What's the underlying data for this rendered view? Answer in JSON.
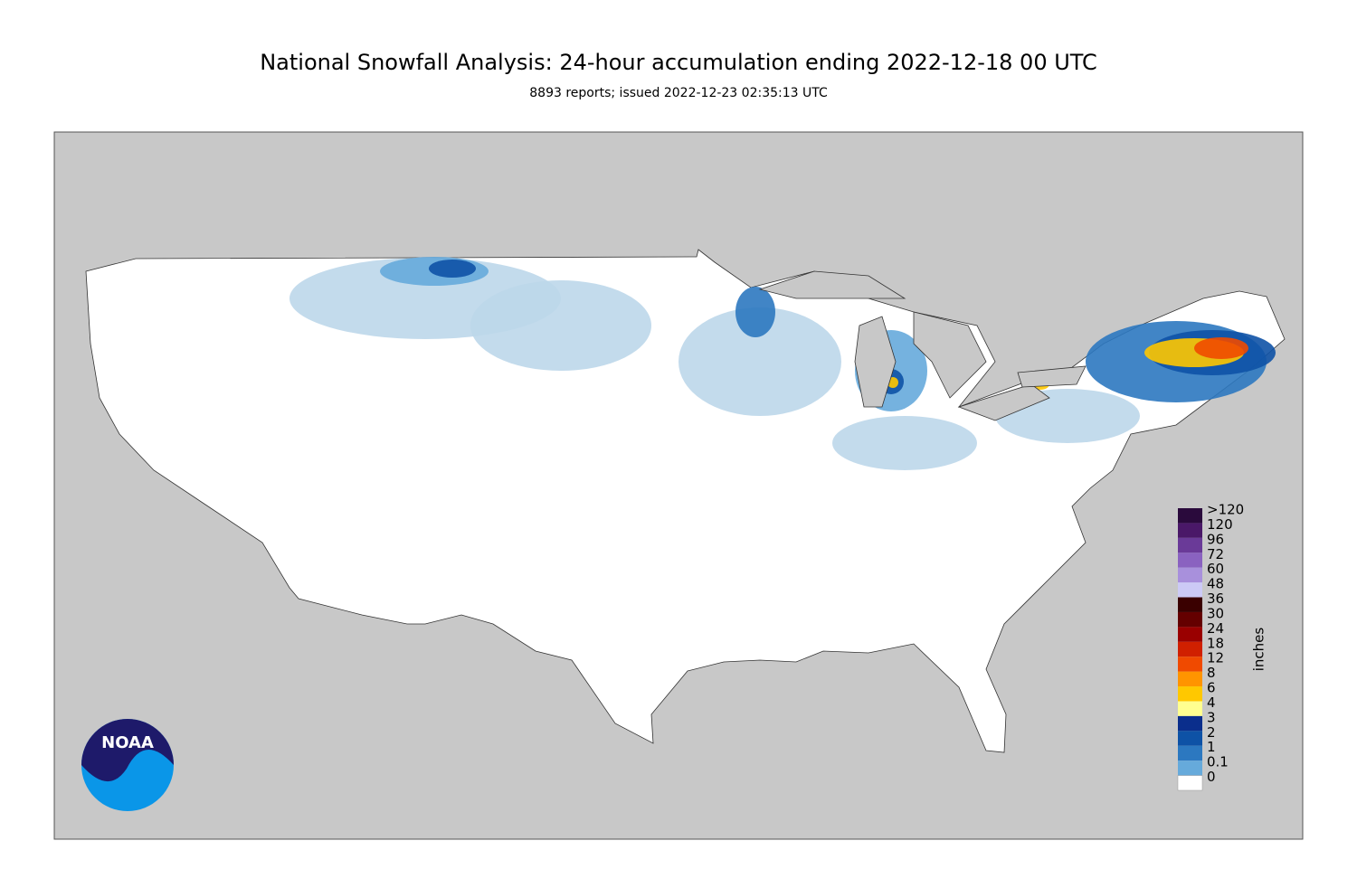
{
  "header": {
    "title": "National Snowfall Analysis: 24-hour accumulation ending 2022-12-18 00 UTC",
    "subtitle": "8893 reports; issued 2022-12-23 02:35:13 UTC"
  },
  "legend": {
    "unit": "inches",
    "labels": [
      ">120",
      "120",
      "96",
      "72",
      "60",
      "48",
      "36",
      "30",
      "24",
      "18",
      "12",
      "8",
      "6",
      "4",
      "3",
      "2",
      "1",
      "0.1",
      "0"
    ],
    "colors": [
      "#2a0a3c",
      "#4a1868",
      "#6a3a98",
      "#8a62c0",
      "#a890dc",
      "#cccaf6",
      "#3a0000",
      "#640000",
      "#9a0000",
      "#d02000",
      "#f04a00",
      "#ff9400",
      "#ffc800",
      "#ffff90",
      "#0a2e8c",
      "#0e52a6",
      "#2c78c0",
      "#66aadb",
      "#bcd7ea"
    ],
    "bottom_color": "#ffffff"
  },
  "logo": {
    "text": "NOAA"
  }
}
